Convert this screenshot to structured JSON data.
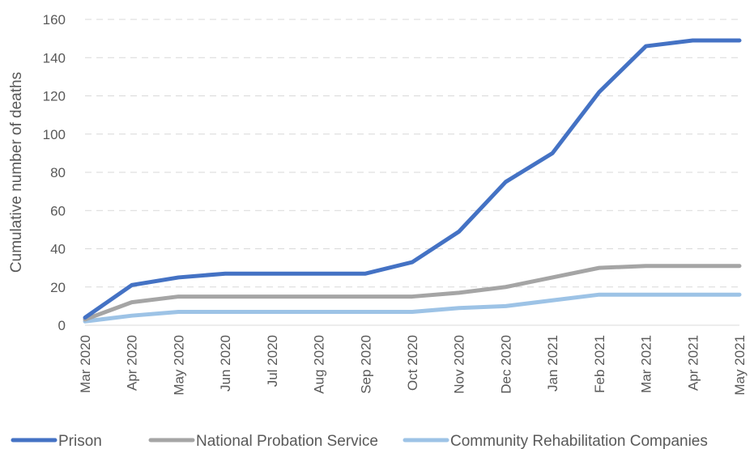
{
  "chart_data": {
    "type": "line",
    "title": "",
    "xlabel": "",
    "ylabel": "Cumulative number of deaths",
    "ylim": [
      0,
      160
    ],
    "yticks": [
      0,
      20,
      40,
      60,
      80,
      100,
      120,
      140,
      160
    ],
    "grid": true,
    "legend_position": "bottom",
    "categories": [
      "Mar 2020",
      "Apr 2020",
      "May 2020",
      "Jun 2020",
      "Jul 2020",
      "Aug 2020",
      "Sep 2020",
      "Oct 2020",
      "Nov 2020",
      "Dec 2020",
      "Jan 2021",
      "Feb 2021",
      "Mar 2021",
      "Apr 2021",
      "May 2021"
    ],
    "series": [
      {
        "name": "Prison",
        "color": "#4472c4",
        "values": [
          4,
          21,
          25,
          27,
          27,
          27,
          27,
          33,
          49,
          75,
          90,
          122,
          146,
          149,
          149
        ]
      },
      {
        "name": "National Probation Service",
        "color": "#a5a5a5",
        "values": [
          3,
          12,
          15,
          15,
          15,
          15,
          15,
          15,
          17,
          20,
          25,
          30,
          31,
          31,
          31
        ]
      },
      {
        "name": "Community Rehabilitation Companies",
        "color": "#9dc3e6",
        "values": [
          2,
          5,
          7,
          7,
          7,
          7,
          7,
          7,
          9,
          10,
          13,
          16,
          16,
          16,
          16
        ]
      }
    ]
  }
}
